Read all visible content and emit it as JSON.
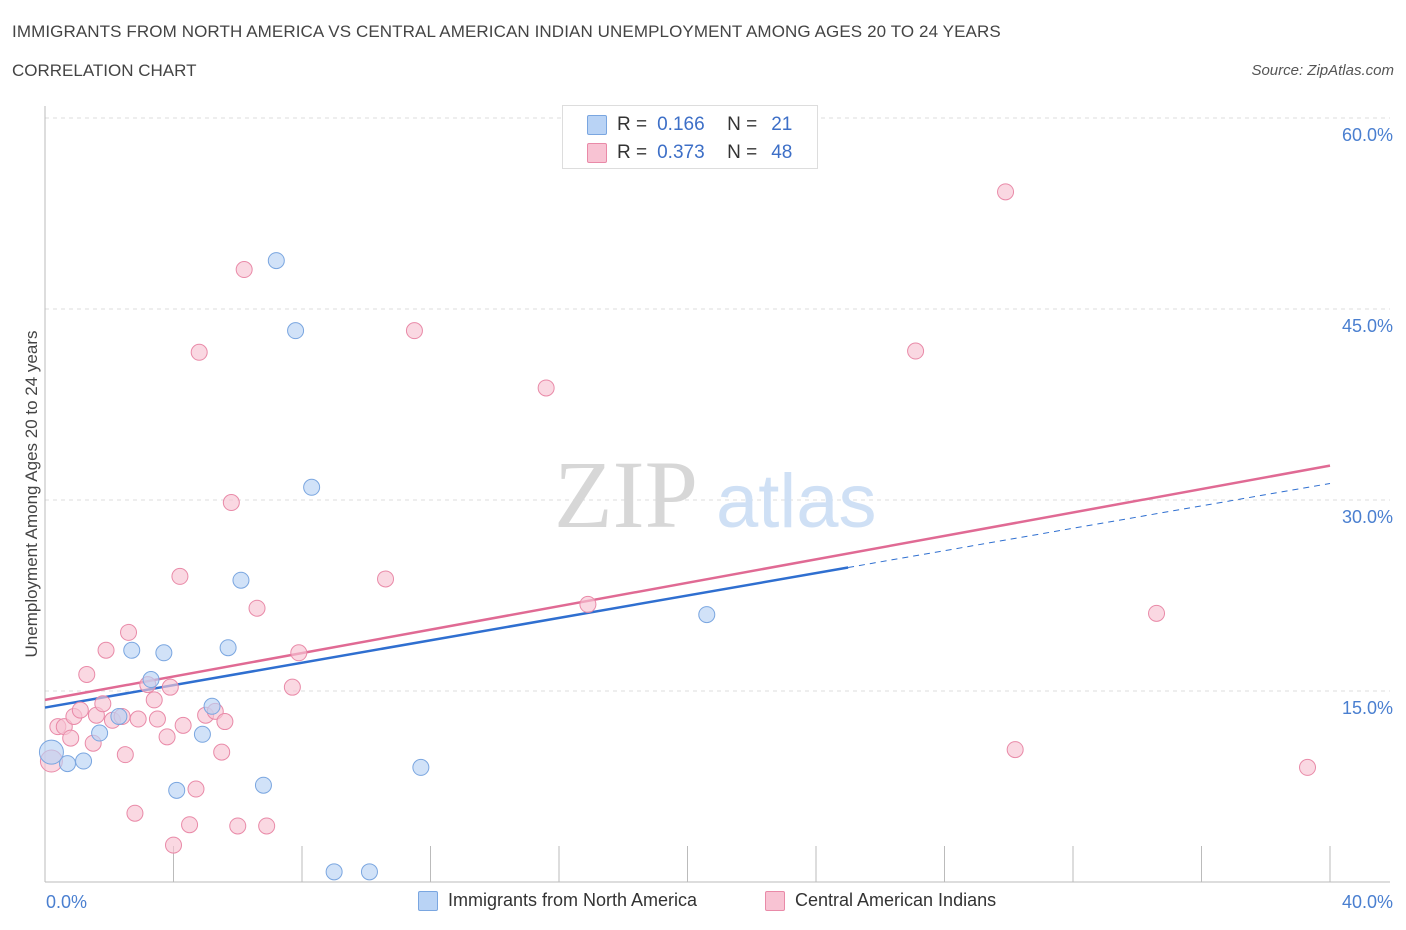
{
  "header": {
    "title": "IMMIGRANTS FROM NORTH AMERICA VS CENTRAL AMERICAN INDIAN UNEMPLOYMENT AMONG AGES 20 TO 24 YEARS",
    "subtitle": "CORRELATION CHART",
    "source": "Source: ZipAtlas.com"
  },
  "watermark": {
    "zip": "ZIP",
    "atlas": "atlas"
  },
  "legend": {
    "r_label": "R =",
    "n_label": "N =",
    "rows": [
      {
        "r": "0.166",
        "n": "21"
      },
      {
        "r": "0.373",
        "n": "48"
      }
    ]
  },
  "colors": {
    "blue_fill": "#b9d3f5",
    "blue_stroke": "#7aa6e0",
    "blue_line": "#2f6fd0",
    "pink_fill": "#f8c3d3",
    "pink_stroke": "#e98aa8",
    "pink_line": "#e06a94",
    "axis_tick": "#4a7fd0"
  },
  "chart_data": {
    "type": "scatter",
    "xlabel": "",
    "ylabel": "Unemployment Among Ages 20 to 24 years",
    "xlim": [
      0,
      40
    ],
    "ylim": [
      0,
      60
    ],
    "x_tick_labels": [
      "0.0%",
      "40.0%"
    ],
    "y_ticks": [
      15,
      30,
      45,
      60
    ],
    "y_tick_labels": [
      "15.0%",
      "30.0%",
      "45.0%",
      "60.0%"
    ],
    "grid": "horizontal dashed",
    "legend_position": "top-center",
    "series": [
      {
        "name": "Immigrants from North America",
        "color": "blue",
        "points": [
          [
            0.2,
            10.2
          ],
          [
            0.7,
            9.3
          ],
          [
            1.2,
            9.5
          ],
          [
            1.7,
            11.7
          ],
          [
            2.7,
            18.2
          ],
          [
            3.3,
            15.9
          ],
          [
            3.7,
            18.0
          ],
          [
            4.1,
            7.2
          ],
          [
            4.9,
            11.6
          ],
          [
            5.2,
            13.8
          ],
          [
            5.7,
            18.4
          ],
          [
            6.1,
            23.7
          ],
          [
            6.8,
            7.6
          ],
          [
            7.2,
            48.8
          ],
          [
            7.8,
            43.3
          ],
          [
            8.3,
            31.0
          ],
          [
            9.0,
            0.8
          ],
          [
            10.1,
            0.8
          ],
          [
            11.7,
            9.0
          ],
          [
            20.6,
            21.0
          ],
          [
            2.3,
            13.0
          ]
        ],
        "trend": {
          "x": [
            0,
            25
          ],
          "y": [
            13.7,
            24.7
          ]
        },
        "trend_extension": {
          "x": [
            25,
            40
          ],
          "y": [
            24.7,
            31.3
          ]
        }
      },
      {
        "name": "Central American Indians",
        "color": "pink",
        "points": [
          [
            0.2,
            9.5
          ],
          [
            0.4,
            12.2
          ],
          [
            0.6,
            12.2
          ],
          [
            0.8,
            11.3
          ],
          [
            0.9,
            13.0
          ],
          [
            1.1,
            13.5
          ],
          [
            1.3,
            16.3
          ],
          [
            1.5,
            10.9
          ],
          [
            1.6,
            13.1
          ],
          [
            1.8,
            14.0
          ],
          [
            1.9,
            18.2
          ],
          [
            2.1,
            12.7
          ],
          [
            2.4,
            13.0
          ],
          [
            2.5,
            10.0
          ],
          [
            2.6,
            19.6
          ],
          [
            2.8,
            5.4
          ],
          [
            2.9,
            12.8
          ],
          [
            3.2,
            15.5
          ],
          [
            3.4,
            14.3
          ],
          [
            3.5,
            12.8
          ],
          [
            3.8,
            11.4
          ],
          [
            3.9,
            15.3
          ],
          [
            4.0,
            2.9
          ],
          [
            4.2,
            24.0
          ],
          [
            4.3,
            12.3
          ],
          [
            4.5,
            4.5
          ],
          [
            4.7,
            7.3
          ],
          [
            4.8,
            41.6
          ],
          [
            5.0,
            13.1
          ],
          [
            5.3,
            13.4
          ],
          [
            5.5,
            10.2
          ],
          [
            5.6,
            12.6
          ],
          [
            5.8,
            29.8
          ],
          [
            6.0,
            4.4
          ],
          [
            6.2,
            48.1
          ],
          [
            6.6,
            21.5
          ],
          [
            6.9,
            4.4
          ],
          [
            7.7,
            15.3
          ],
          [
            7.9,
            18.0
          ],
          [
            10.6,
            23.8
          ],
          [
            11.5,
            43.3
          ],
          [
            15.6,
            38.8
          ],
          [
            16.9,
            21.8
          ],
          [
            27.1,
            41.7
          ],
          [
            29.9,
            54.2
          ],
          [
            30.2,
            10.4
          ],
          [
            34.6,
            21.1
          ],
          [
            39.3,
            9.0
          ]
        ],
        "trend": {
          "x": [
            0,
            40
          ],
          "y": [
            14.3,
            32.7
          ]
        }
      }
    ]
  }
}
